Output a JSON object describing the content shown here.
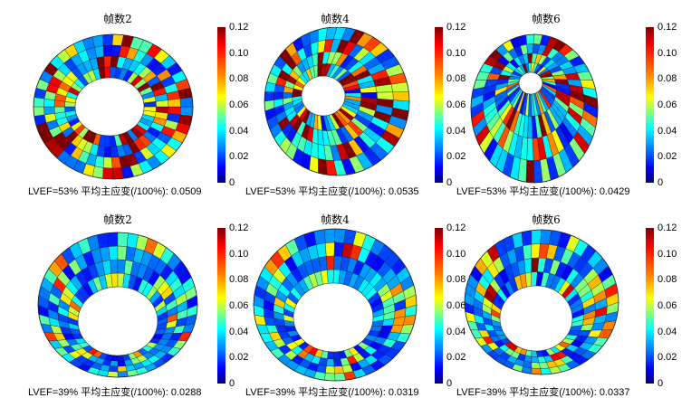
{
  "colorbar": {
    "ticks": [
      "0.12",
      "0.10",
      "0.08",
      "0.06",
      "0.04",
      "0.02",
      "0"
    ]
  },
  "panels": [
    {
      "title": "帧数2",
      "caption": "LVEF=53%  平均主应变(/100%): 0.0509",
      "lvef": 53,
      "mean_strain": 0.0509
    },
    {
      "title": "帧数4",
      "caption": "LVEF=53%  平均主应变(/100%): 0.0535",
      "lvef": 53,
      "mean_strain": 0.0535
    },
    {
      "title": "帧数6",
      "caption": "LVEF=53%  平均主应变(/100%): 0.0429",
      "lvef": 53,
      "mean_strain": 0.0429
    },
    {
      "title": "帧数2",
      "caption": "LVEF=39%  平均主应变(/100%): 0.0288",
      "lvef": 39,
      "mean_strain": 0.0288
    },
    {
      "title": "帧数4",
      "caption": "LVEF=39%  平均主应变(/100%): 0.0319",
      "lvef": 39,
      "mean_strain": 0.0319
    },
    {
      "title": "帧数6",
      "caption": "LVEF=39%  平均主应变(/100%): 0.0337",
      "lvef": 39,
      "mean_strain": 0.0337
    }
  ],
  "colors": {
    "low": "#0000c8",
    "mid": "#00c0ff",
    "high": "#ff2000"
  }
}
